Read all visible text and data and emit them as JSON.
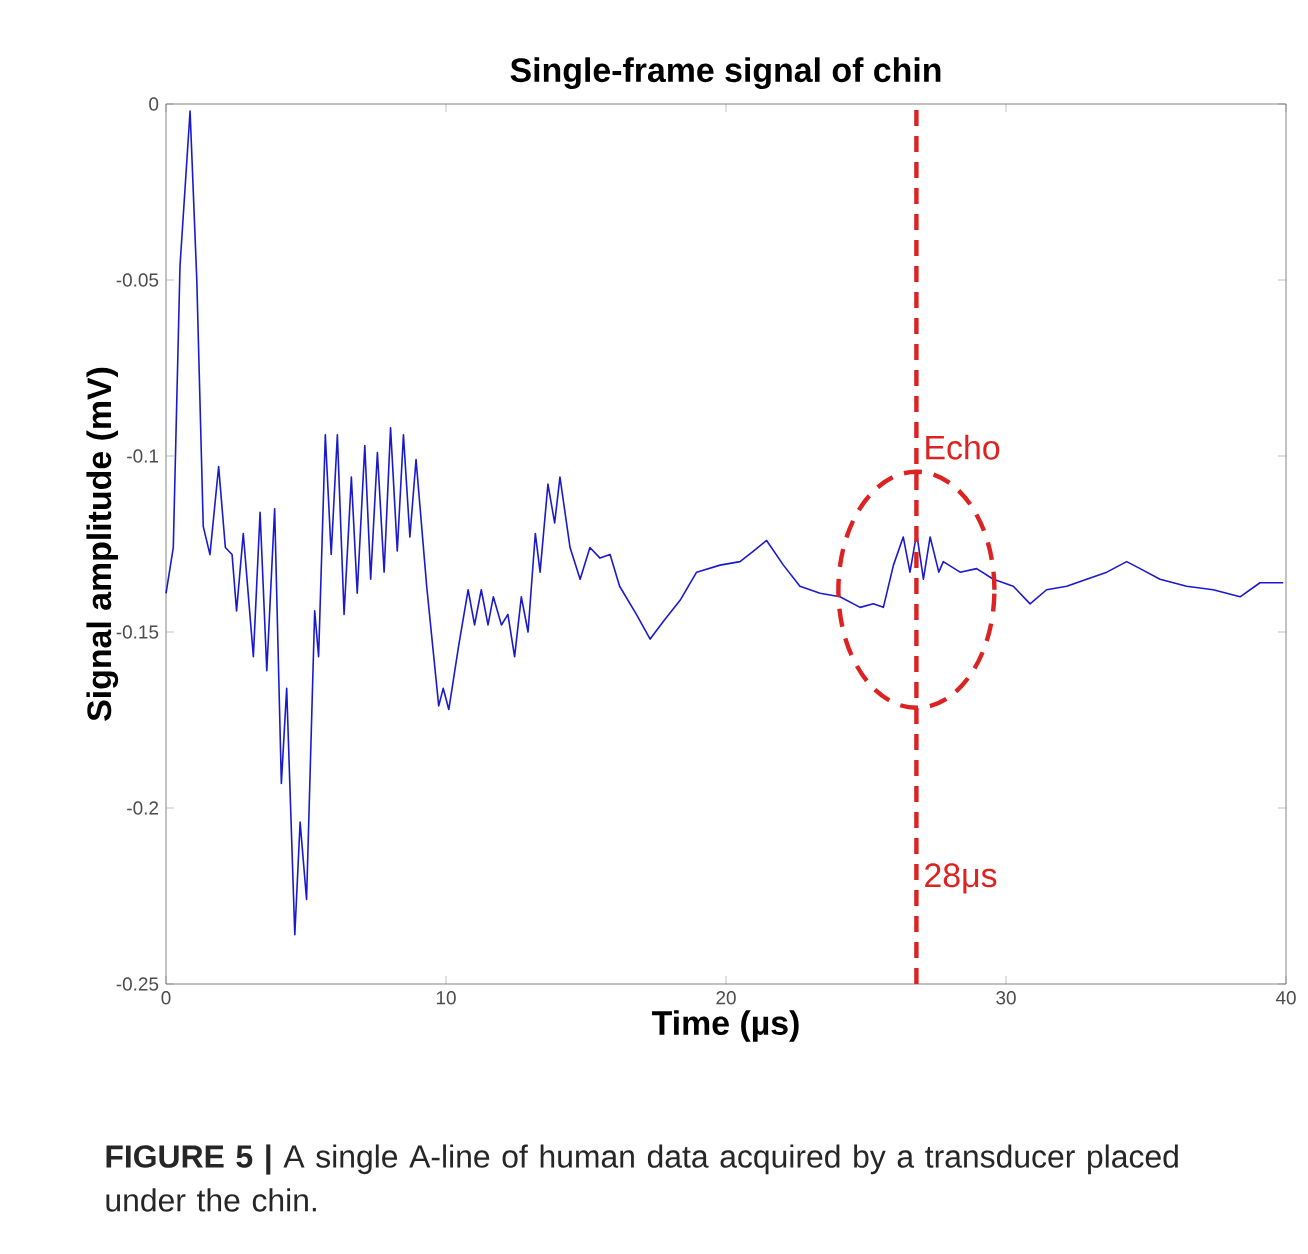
{
  "chart_data": {
    "type": "line",
    "title": "Single-frame signal of chin",
    "xlabel": "Time (µs)",
    "ylabel": "Signal amplitude (mV)",
    "x": [
      0,
      0.26,
      0.5,
      0.86,
      1.1,
      1.33,
      1.57,
      1.88,
      2.12,
      2.36,
      2.52,
      2.76,
      3.12,
      3.36,
      3.6,
      3.88,
      4.12,
      4.31,
      4.6,
      4.79,
      5.02,
      5.31,
      5.45,
      5.69,
      5.9,
      6.12,
      6.36,
      6.62,
      6.83,
      7.1,
      7.31,
      7.55,
      7.79,
      8.02,
      8.26,
      8.48,
      8.71,
      8.93,
      9.31,
      9.74,
      9.9,
      10.1,
      10.45,
      10.79,
      11.02,
      11.26,
      11.5,
      11.69,
      11.98,
      12.21,
      12.45,
      12.69,
      12.93,
      13.19,
      13.36,
      13.64,
      13.88,
      14.07,
      14.43,
      14.79,
      15.14,
      15.5,
      15.86,
      16.2,
      16.8,
      17.29,
      17.76,
      18.36,
      18.95,
      19.79,
      20.5,
      20.98,
      21.45,
      22.05,
      22.64,
      23.36,
      24.07,
      24.79,
      25.26,
      25.62,
      25.98,
      26.33,
      26.57,
      26.81,
      27.05,
      27.29,
      27.6,
      27.76,
      28.36,
      28.95,
      29.55,
      30.26,
      30.86,
      31.45,
      32.17,
      32.88,
      33.6,
      34.31,
      34.79,
      35.5,
      36.45,
      37.4,
      38.36,
      39.07,
      39.9
    ],
    "series": [
      {
        "color": "#1a1acc",
        "values": [
          -0.139,
          -0.126,
          -0.046,
          -0.002,
          -0.05,
          -0.12,
          -0.128,
          -0.103,
          -0.126,
          -0.128,
          -0.144,
          -0.122,
          -0.157,
          -0.116,
          -0.161,
          -0.115,
          -0.193,
          -0.166,
          -0.236,
          -0.204,
          -0.226,
          -0.144,
          -0.157,
          -0.094,
          -0.128,
          -0.094,
          -0.145,
          -0.106,
          -0.139,
          -0.097,
          -0.135,
          -0.099,
          -0.133,
          -0.092,
          -0.127,
          -0.094,
          -0.123,
          -0.101,
          -0.137,
          -0.171,
          -0.166,
          -0.172,
          -0.154,
          -0.138,
          -0.148,
          -0.138,
          -0.148,
          -0.14,
          -0.148,
          -0.145,
          -0.157,
          -0.14,
          -0.15,
          -0.122,
          -0.133,
          -0.108,
          -0.119,
          -0.106,
          -0.126,
          -0.135,
          -0.126,
          -0.129,
          -0.128,
          -0.137,
          -0.145,
          -0.152,
          -0.147,
          -0.141,
          -0.133,
          -0.131,
          -0.13,
          -0.127,
          -0.124,
          -0.131,
          -0.137,
          -0.139,
          -0.14,
          -0.143,
          -0.142,
          -0.143,
          -0.131,
          -0.123,
          -0.133,
          -0.122,
          -0.135,
          -0.123,
          -0.133,
          -0.13,
          -0.133,
          -0.132,
          -0.135,
          -0.137,
          -0.142,
          -0.138,
          -0.137,
          -0.135,
          -0.133,
          -0.13,
          -0.132,
          -0.135,
          -0.137,
          -0.138,
          -0.14,
          -0.136,
          -0.136
        ]
      }
    ],
    "xlim": [
      0,
      40
    ],
    "xticks": [
      0,
      10,
      20,
      30,
      40
    ],
    "ylim": [
      -0.25,
      0
    ],
    "yticks": [
      -0.25,
      -0.2,
      -0.15,
      -0.1,
      -0.05,
      0
    ],
    "grid": false,
    "marker": "none",
    "line_style": "solid",
    "ref_lines": [
      {
        "axis": "x",
        "value": 26.8,
        "label": "28μs",
        "color": "#dd2222",
        "line_style": "dashed"
      }
    ],
    "annotations": [
      "Echo",
      "**FIGURE 5 |** A single A-line of human data acquired by a transducer placed under the chin."
    ]
  }
}
